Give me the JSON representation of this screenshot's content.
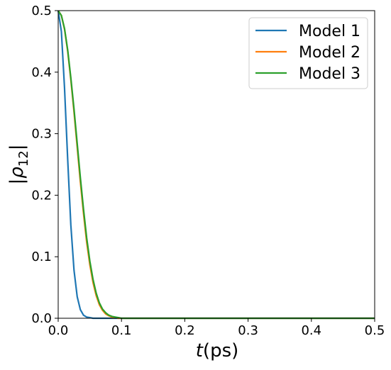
{
  "chart_data": {
    "type": "line",
    "xlabel_main": "t",
    "xlabel_unit": "(ps)",
    "ylabel_main": "ρ",
    "ylabel_sub": "12",
    "ylabel_delim": "|",
    "xlim": [
      0,
      0.5
    ],
    "ylim": [
      0,
      0.5
    ],
    "xticks": [
      0.0,
      0.1,
      0.2,
      0.3,
      0.4,
      0.5
    ],
    "xtick_labels": [
      "0.0",
      "0.1",
      "0.2",
      "0.3",
      "0.4",
      "0.5"
    ],
    "yticks": [
      0.0,
      0.1,
      0.2,
      0.3,
      0.4,
      0.5
    ],
    "ytick_labels": [
      "0.0",
      "0.1",
      "0.2",
      "0.3",
      "0.4",
      "0.5"
    ],
    "grid": false,
    "legend_position": "top-right",
    "x": [
      0.0,
      0.005,
      0.01,
      0.015,
      0.02,
      0.025,
      0.03,
      0.035,
      0.04,
      0.045,
      0.05,
      0.055,
      0.06,
      0.065,
      0.07,
      0.075,
      0.08,
      0.085,
      0.09,
      0.095,
      0.1,
      0.11,
      0.12,
      0.13,
      0.14,
      0.15,
      0.16,
      0.18,
      0.2,
      0.25,
      0.3,
      0.35,
      0.4,
      0.45,
      0.5
    ],
    "series": [
      {
        "name": "Model 1",
        "color": "#1f77b4",
        "values": [
          0.5,
          0.466,
          0.375,
          0.258,
          0.152,
          0.078,
          0.035,
          0.014,
          0.005,
          0.002,
          0.001,
          0.0,
          0.0,
          0.0,
          0.0,
          0.0,
          0.0,
          0.0,
          0.0,
          0.0,
          0.0,
          0.0,
          0.0,
          0.0,
          0.0,
          0.0,
          0.0,
          0.0,
          0.0,
          0.0,
          0.0,
          0.0,
          0.0,
          0.0,
          0.0
        ]
      },
      {
        "name": "Model 2",
        "color": "#ff7f0e",
        "values": [
          0.5,
          0.492,
          0.47,
          0.434,
          0.388,
          0.335,
          0.278,
          0.222,
          0.17,
          0.124,
          0.087,
          0.058,
          0.037,
          0.022,
          0.013,
          0.007,
          0.004,
          0.002,
          0.001,
          0.0,
          0.0,
          0.0,
          0.0,
          0.0,
          0.0,
          0.0,
          0.0,
          0.0,
          0.0,
          0.0,
          0.0,
          0.0,
          0.0,
          0.0,
          0.0
        ]
      },
      {
        "name": "Model 3",
        "color": "#2ca02c",
        "values": [
          0.5,
          0.492,
          0.471,
          0.436,
          0.391,
          0.34,
          0.284,
          0.229,
          0.177,
          0.131,
          0.093,
          0.063,
          0.041,
          0.025,
          0.015,
          0.009,
          0.005,
          0.003,
          0.002,
          0.001,
          0.0,
          0.0,
          0.0,
          0.0,
          0.0,
          0.0,
          0.0,
          0.0,
          0.0,
          0.0,
          0.0,
          0.0,
          0.0,
          0.0,
          0.0
        ]
      }
    ]
  }
}
